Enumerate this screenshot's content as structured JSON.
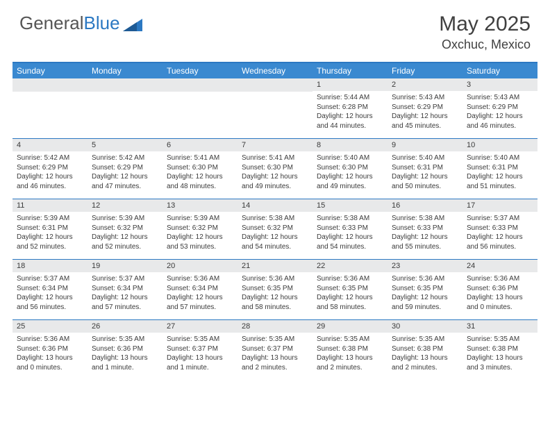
{
  "brand": {
    "name1": "General",
    "name2": "Blue"
  },
  "title": "May 2025",
  "location": "Oxchuc, Mexico",
  "weekdays": [
    "Sunday",
    "Monday",
    "Tuesday",
    "Wednesday",
    "Thursday",
    "Friday",
    "Saturday"
  ],
  "colors": {
    "header_bar": "#3a89d0",
    "accent": "#2b78c2",
    "daynum_bg": "#e8e9ea",
    "text": "#3a3a3a"
  },
  "weeks": [
    [
      {
        "n": ""
      },
      {
        "n": ""
      },
      {
        "n": ""
      },
      {
        "n": ""
      },
      {
        "n": "1",
        "sr": "5:44 AM",
        "ss": "6:28 PM",
        "dl": "12 hours and 44 minutes."
      },
      {
        "n": "2",
        "sr": "5:43 AM",
        "ss": "6:29 PM",
        "dl": "12 hours and 45 minutes."
      },
      {
        "n": "3",
        "sr": "5:43 AM",
        "ss": "6:29 PM",
        "dl": "12 hours and 46 minutes."
      }
    ],
    [
      {
        "n": "4",
        "sr": "5:42 AM",
        "ss": "6:29 PM",
        "dl": "12 hours and 46 minutes."
      },
      {
        "n": "5",
        "sr": "5:42 AM",
        "ss": "6:29 PM",
        "dl": "12 hours and 47 minutes."
      },
      {
        "n": "6",
        "sr": "5:41 AM",
        "ss": "6:30 PM",
        "dl": "12 hours and 48 minutes."
      },
      {
        "n": "7",
        "sr": "5:41 AM",
        "ss": "6:30 PM",
        "dl": "12 hours and 49 minutes."
      },
      {
        "n": "8",
        "sr": "5:40 AM",
        "ss": "6:30 PM",
        "dl": "12 hours and 49 minutes."
      },
      {
        "n": "9",
        "sr": "5:40 AM",
        "ss": "6:31 PM",
        "dl": "12 hours and 50 minutes."
      },
      {
        "n": "10",
        "sr": "5:40 AM",
        "ss": "6:31 PM",
        "dl": "12 hours and 51 minutes."
      }
    ],
    [
      {
        "n": "11",
        "sr": "5:39 AM",
        "ss": "6:31 PM",
        "dl": "12 hours and 52 minutes."
      },
      {
        "n": "12",
        "sr": "5:39 AM",
        "ss": "6:32 PM",
        "dl": "12 hours and 52 minutes."
      },
      {
        "n": "13",
        "sr": "5:39 AM",
        "ss": "6:32 PM",
        "dl": "12 hours and 53 minutes."
      },
      {
        "n": "14",
        "sr": "5:38 AM",
        "ss": "6:32 PM",
        "dl": "12 hours and 54 minutes."
      },
      {
        "n": "15",
        "sr": "5:38 AM",
        "ss": "6:33 PM",
        "dl": "12 hours and 54 minutes."
      },
      {
        "n": "16",
        "sr": "5:38 AM",
        "ss": "6:33 PM",
        "dl": "12 hours and 55 minutes."
      },
      {
        "n": "17",
        "sr": "5:37 AM",
        "ss": "6:33 PM",
        "dl": "12 hours and 56 minutes."
      }
    ],
    [
      {
        "n": "18",
        "sr": "5:37 AM",
        "ss": "6:34 PM",
        "dl": "12 hours and 56 minutes."
      },
      {
        "n": "19",
        "sr": "5:37 AM",
        "ss": "6:34 PM",
        "dl": "12 hours and 57 minutes."
      },
      {
        "n": "20",
        "sr": "5:36 AM",
        "ss": "6:34 PM",
        "dl": "12 hours and 57 minutes."
      },
      {
        "n": "21",
        "sr": "5:36 AM",
        "ss": "6:35 PM",
        "dl": "12 hours and 58 minutes."
      },
      {
        "n": "22",
        "sr": "5:36 AM",
        "ss": "6:35 PM",
        "dl": "12 hours and 58 minutes."
      },
      {
        "n": "23",
        "sr": "5:36 AM",
        "ss": "6:35 PM",
        "dl": "12 hours and 59 minutes."
      },
      {
        "n": "24",
        "sr": "5:36 AM",
        "ss": "6:36 PM",
        "dl": "13 hours and 0 minutes."
      }
    ],
    [
      {
        "n": "25",
        "sr": "5:36 AM",
        "ss": "6:36 PM",
        "dl": "13 hours and 0 minutes."
      },
      {
        "n": "26",
        "sr": "5:35 AM",
        "ss": "6:36 PM",
        "dl": "13 hours and 1 minute."
      },
      {
        "n": "27",
        "sr": "5:35 AM",
        "ss": "6:37 PM",
        "dl": "13 hours and 1 minute."
      },
      {
        "n": "28",
        "sr": "5:35 AM",
        "ss": "6:37 PM",
        "dl": "13 hours and 2 minutes."
      },
      {
        "n": "29",
        "sr": "5:35 AM",
        "ss": "6:38 PM",
        "dl": "13 hours and 2 minutes."
      },
      {
        "n": "30",
        "sr": "5:35 AM",
        "ss": "6:38 PM",
        "dl": "13 hours and 2 minutes."
      },
      {
        "n": "31",
        "sr": "5:35 AM",
        "ss": "6:38 PM",
        "dl": "13 hours and 3 minutes."
      }
    ]
  ],
  "labels": {
    "sunrise": "Sunrise:",
    "sunset": "Sunset:",
    "daylight": "Daylight:"
  }
}
